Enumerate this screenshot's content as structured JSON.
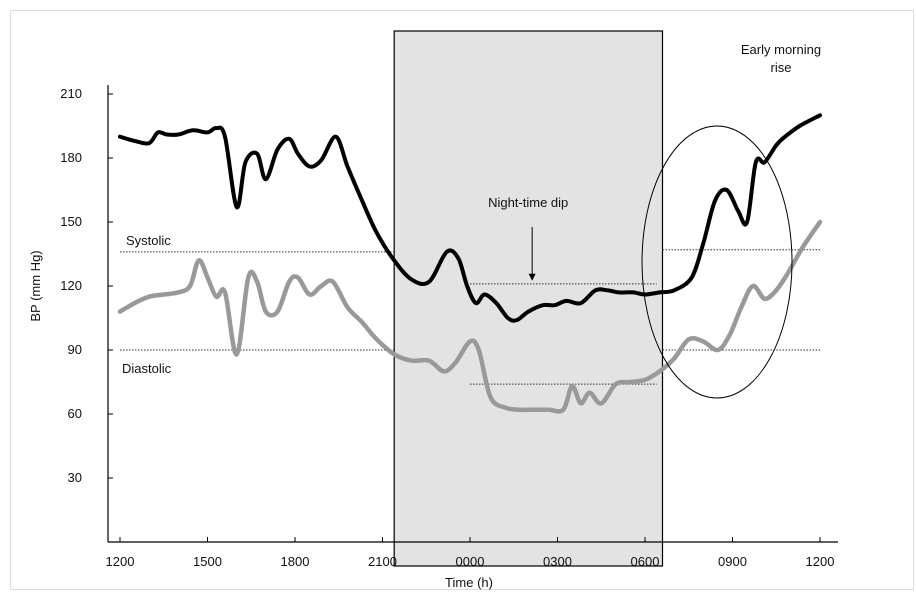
{
  "chart_data": {
    "type": "line",
    "title": "",
    "xlabel": "Time (h)",
    "ylabel": "BP (mm Hg)",
    "x_unit": "hours since 12:00",
    "x_ticks": [
      0,
      3,
      6,
      9,
      12,
      15,
      18,
      21,
      24
    ],
    "x_tick_labels": [
      "1200",
      "1500",
      "1800",
      "2100",
      "0000",
      "0300",
      "0600",
      "0900",
      "1200"
    ],
    "y_ticks": [
      30,
      60,
      90,
      120,
      150,
      180,
      210
    ],
    "y_tick_labels": [
      "30",
      "60",
      "90",
      "120",
      "150",
      "180",
      "210"
    ],
    "xlim": [
      0,
      24
    ],
    "ylim": [
      0,
      240
    ],
    "grid": false,
    "night_period": {
      "start": 9.4,
      "end": 18.6
    },
    "series": [
      {
        "name": "",
        "color": "#000000",
        "x": [
          0,
          0.5,
          1.0,
          1.3,
          1.6,
          2.0,
          2.5,
          3.0,
          3.3,
          3.6,
          4.0,
          4.3,
          4.7,
          5.0,
          5.4,
          5.8,
          6.1,
          6.5,
          6.9,
          7.4,
          7.8,
          8.3,
          8.8,
          9.4,
          10.0,
          10.6,
          11.2,
          11.6,
          11.9,
          12.2,
          12.5,
          12.9,
          13.3,
          13.6,
          14.0,
          14.5,
          14.9,
          15.3,
          15.8,
          16.3,
          16.7,
          17.1,
          17.6,
          18.0,
          18.5,
          19.0,
          19.6,
          20.0,
          20.4,
          20.8,
          21.2,
          21.5,
          21.8,
          22.1,
          22.5,
          22.8,
          23.3,
          24.0
        ],
        "y": [
          190,
          188,
          187,
          192,
          191,
          191,
          193,
          192,
          194,
          190,
          157,
          178,
          182,
          170,
          184,
          189,
          182,
          176,
          179,
          190,
          176,
          160,
          145,
          132,
          123,
          122,
          136,
          133,
          120,
          112,
          116,
          112,
          105,
          104,
          108,
          111,
          111,
          113,
          112,
          118,
          118,
          117,
          117,
          116,
          117,
          118,
          124,
          140,
          160,
          165,
          155,
          150,
          178,
          178,
          186,
          190,
          195,
          200
        ]
      },
      {
        "name": "",
        "color": "#999999",
        "x": [
          0,
          0.5,
          1.0,
          1.5,
          2.0,
          2.4,
          2.7,
          3.0,
          3.3,
          3.6,
          4.0,
          4.4,
          4.7,
          5.0,
          5.4,
          5.8,
          6.1,
          6.5,
          6.9,
          7.3,
          7.8,
          8.3,
          8.8,
          9.4,
          10.0,
          10.6,
          11.1,
          11.5,
          12.0,
          12.3,
          12.7,
          13.2,
          13.7,
          14.2,
          14.7,
          15.2,
          15.5,
          15.8,
          16.1,
          16.5,
          17.0,
          17.5,
          18.0,
          18.5,
          19.0,
          19.5,
          20.0,
          20.5,
          20.9,
          21.3,
          21.7,
          22.1,
          22.5,
          22.9,
          23.4,
          24.0
        ],
        "y": [
          108,
          112,
          115,
          116,
          117,
          120,
          132,
          124,
          115,
          117,
          88,
          124,
          122,
          108,
          108,
          122,
          124,
          116,
          120,
          122,
          110,
          103,
          95,
          88,
          85,
          85,
          80,
          84,
          94,
          90,
          68,
          63,
          62,
          62,
          62,
          62,
          73,
          65,
          70,
          65,
          74,
          75,
          76,
          80,
          86,
          95,
          94,
          90,
          97,
          110,
          120,
          114,
          118,
          126,
          138,
          150
        ]
      }
    ],
    "reference_lines": [
      {
        "label": "Systolic",
        "y": 136,
        "x_start": 0,
        "x_end": 9.4
      },
      {
        "label": "Diastolic",
        "y": 90,
        "x_start": 0,
        "x_end": 9.4
      },
      {
        "label": "",
        "y": 121,
        "x_start": 12.0,
        "x_end": 18.4
      },
      {
        "label": "",
        "y": 74,
        "x_start": 12.0,
        "x_end": 18.4
      },
      {
        "label": "",
        "y": 137,
        "x_start": 18.6,
        "x_end": 24.0
      },
      {
        "label": "",
        "y": 90,
        "x_start": 18.6,
        "x_end": 24.0
      }
    ],
    "annotations": [
      {
        "text": "Night-time dip",
        "x": 14.2,
        "y": 158,
        "arrow_to_y": 122
      },
      {
        "text_lines": [
          "Early morning",
          "rise"
        ],
        "x": 20.6,
        "y": 235,
        "ellipse_center": [
          20.6,
          145
        ],
        "ellipse_rx": 5.0,
        "ellipse_ry": 65
      }
    ]
  }
}
